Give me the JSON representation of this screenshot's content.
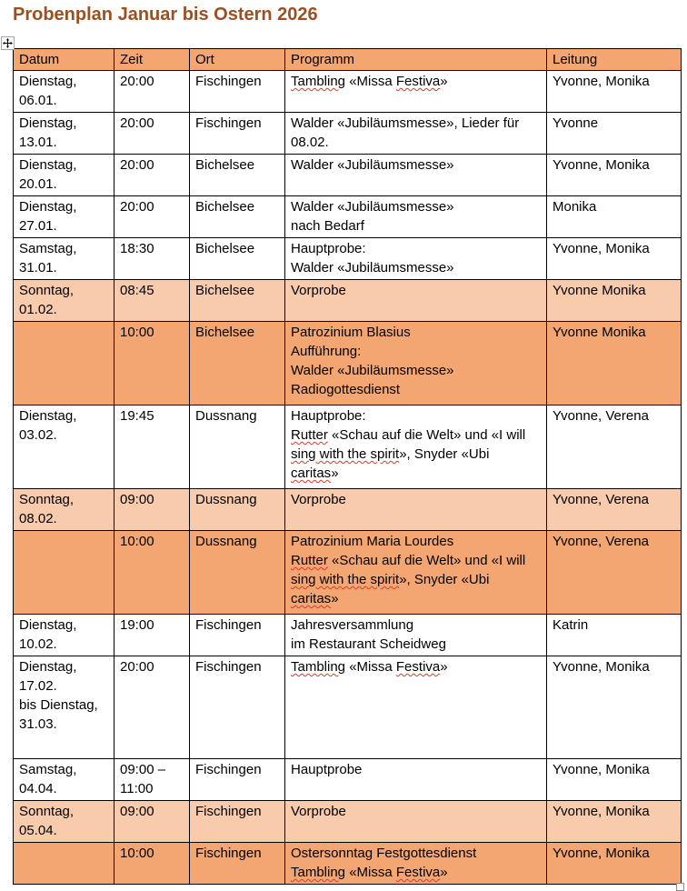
{
  "title": "Probenplan Januar bis Ostern 2026",
  "colors": {
    "title-color": "#9A5021",
    "header-fill": "#F3A572",
    "light-fill": "#F8CBAD",
    "dark-fill": "#F3A572",
    "border-color": "#000000",
    "squiggle-color": "#E03A2A"
  },
  "icons": {
    "table_move_handle": "four-way-arrow-icon",
    "table_resize_handle": "resize-square-icon"
  },
  "table": {
    "headers": [
      "Datum",
      "Zeit",
      "Ort",
      "Programm",
      "Leitung"
    ],
    "misspelled_phrases": [
      "Tambling",
      "Festiva",
      "Rutter",
      "sing with the spirit",
      "caritas"
    ],
    "rows": [
      {
        "shade": "white",
        "size": "h2",
        "datum": [
          "Dienstag,",
          "06.01."
        ],
        "zeit": [
          "20:00"
        ],
        "ort": [
          "Fischingen"
        ],
        "programm": [
          "Tambling «Missa Festiva»"
        ],
        "leitung": [
          "Yvonne, Monika"
        ]
      },
      {
        "shade": "white",
        "size": "h2",
        "datum": [
          "Dienstag,",
          "13.01."
        ],
        "zeit": [
          "20:00"
        ],
        "ort": [
          "Fischingen"
        ],
        "programm": [
          "Walder «Jubiläumsmesse», Lieder für",
          "08.02."
        ],
        "leitung": [
          "Yvonne"
        ]
      },
      {
        "shade": "white",
        "size": "h2",
        "datum": [
          "Dienstag,",
          "20.01."
        ],
        "zeit": [
          "20:00"
        ],
        "ort": [
          "Bichelsee"
        ],
        "programm": [
          "Walder «Jubiläumsmesse»"
        ],
        "leitung": [
          "Yvonne, Monika"
        ]
      },
      {
        "shade": "white",
        "size": "h2",
        "datum": [
          "Dienstag,",
          "27.01."
        ],
        "zeit": [
          "20:00"
        ],
        "ort": [
          "Bichelsee"
        ],
        "programm": [
          "Walder «Jubiläumsmesse»",
          "nach Bedarf"
        ],
        "leitung": [
          "Monika"
        ]
      },
      {
        "shade": "white",
        "size": "h2",
        "datum": [
          "Samstag,",
          "31.01."
        ],
        "zeit": [
          "18:30"
        ],
        "ort": [
          "Bichelsee"
        ],
        "programm": [
          "Hauptprobe:",
          "Walder «Jubiläumsmesse»"
        ],
        "leitung": [
          "Yvonne, Monika"
        ]
      },
      {
        "shade": "light",
        "size": "h2",
        "datum": [
          "Sonntag,",
          "01.02."
        ],
        "zeit": [
          "08:45"
        ],
        "ort": [
          "Bichelsee"
        ],
        "programm": [
          "Vorprobe"
        ],
        "leitung": [
          "Yvonne Monika"
        ]
      },
      {
        "shade": "dark",
        "size": "h4",
        "datum": [],
        "zeit": [
          "10:00"
        ],
        "ort": [
          "Bichelsee"
        ],
        "programm": [
          "Patrozinium Blasius",
          "Aufführung:",
          "Walder «Jubiläumsmesse»",
          "Radiogottesdienst"
        ],
        "leitung": [
          "Yvonne Monika"
        ]
      },
      {
        "shade": "white",
        "size": "h4",
        "datum": [
          "Dienstag,",
          "03.02."
        ],
        "zeit": [
          "19:45"
        ],
        "ort": [
          "Dussnang"
        ],
        "programm": [
          "Hauptprobe:",
          "Rutter «Schau auf die Welt» und «I will",
          "sing with the spirit», Snyder «Ubi",
          "caritas»"
        ],
        "leitung": [
          "Yvonne, Verena"
        ]
      },
      {
        "shade": "light",
        "size": "h2",
        "datum": [
          "Sonntag,",
          "08.02."
        ],
        "zeit": [
          "09:00"
        ],
        "ort": [
          "Dussnang"
        ],
        "programm": [
          "Vorprobe"
        ],
        "leitung": [
          "Yvonne, Verena"
        ]
      },
      {
        "shade": "dark",
        "size": "h4",
        "datum": [],
        "zeit": [
          "10:00"
        ],
        "ort": [
          "Dussnang"
        ],
        "programm": [
          "Patrozinium Maria Lourdes",
          "Rutter «Schau auf die Welt» und «I will",
          "sing with the spirit», Snyder «Ubi",
          "caritas»"
        ],
        "leitung": [
          "Yvonne, Verena"
        ]
      },
      {
        "shade": "white",
        "size": "h2",
        "datum": [
          "Dienstag,",
          "10.02."
        ],
        "zeit": [
          "19:00"
        ],
        "ort": [
          "Fischingen"
        ],
        "programm": [
          "Jahresversammlung",
          "im Restaurant Scheidweg"
        ],
        "leitung": [
          "Katrin"
        ]
      },
      {
        "shade": "white",
        "size": "tall",
        "datum": [
          "Dienstag,",
          "17.02.",
          "bis Dienstag,",
          "31.03."
        ],
        "zeit": [
          "20:00"
        ],
        "ort": [
          "Fischingen"
        ],
        "programm": [
          "Tambling «Missa Festiva»"
        ],
        "leitung": [
          "Yvonne, Monika"
        ]
      },
      {
        "shade": "white",
        "size": "h2",
        "datum": [
          "Samstag,",
          "04.04."
        ],
        "zeit": [
          "09:00 –",
          "11:00"
        ],
        "ort": [
          "Fischingen"
        ],
        "programm": [
          "Hauptprobe"
        ],
        "leitung": [
          "Yvonne, Monika"
        ]
      },
      {
        "shade": "light",
        "size": "h2",
        "datum": [
          "Sonntag,",
          "05.04."
        ],
        "zeit": [
          "09:00"
        ],
        "ort": [
          "Fischingen"
        ],
        "programm": [
          "Vorprobe"
        ],
        "leitung": [
          "Yvonne, Monika"
        ]
      },
      {
        "shade": "dark",
        "size": "h2",
        "datum": [],
        "zeit": [
          "10:00"
        ],
        "ort": [
          "Fischingen"
        ],
        "programm": [
          "Ostersonntag Festgottesdienst",
          "Tambling «Missa Festiva»"
        ],
        "leitung": [
          "Yvonne, Monika"
        ]
      }
    ]
  }
}
